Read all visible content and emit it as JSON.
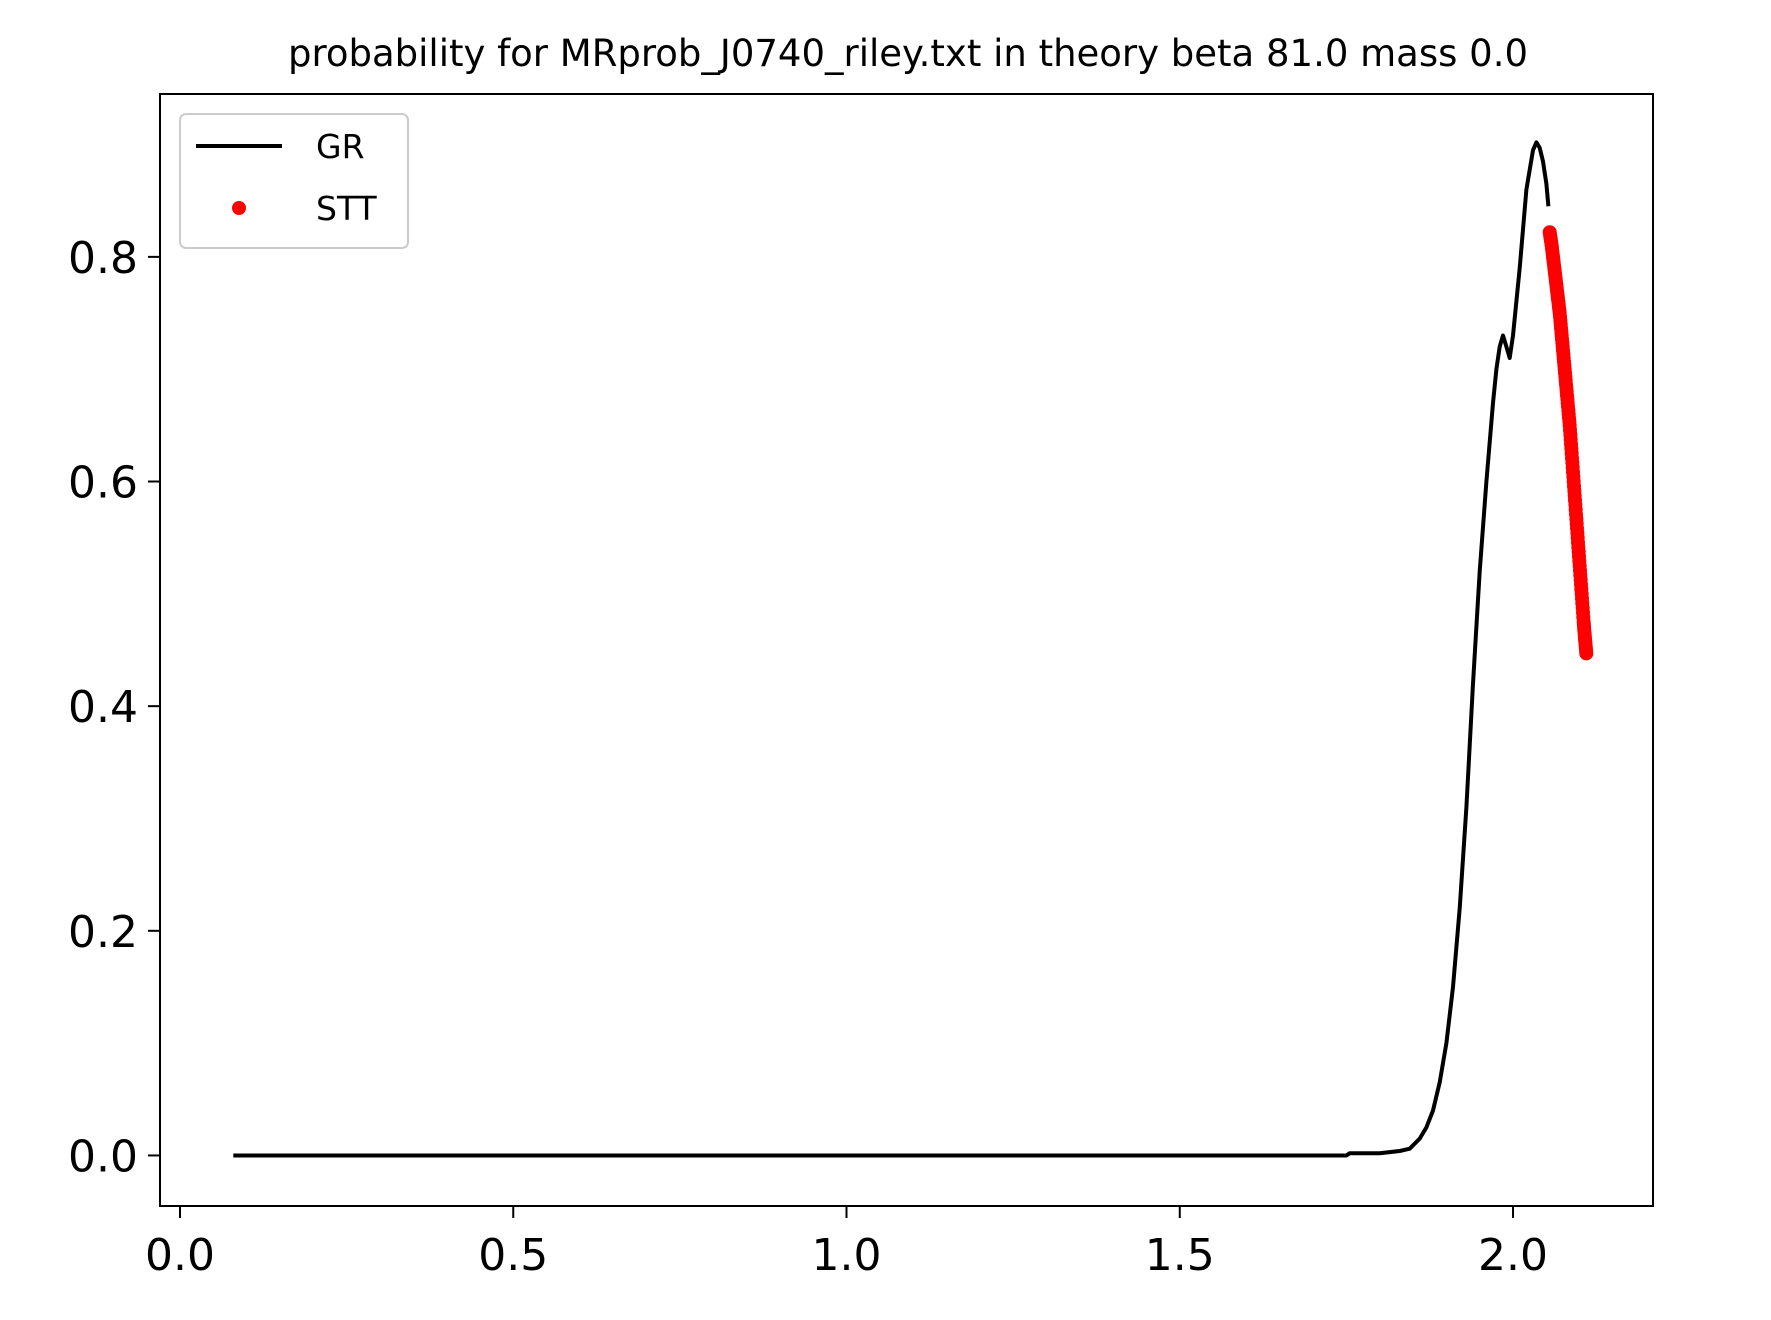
{
  "chart_data": {
    "type": "line",
    "title": "probability for MRprob_J0740_riley.txt in theory beta 81.0 mass 0.0",
    "xlabel": "",
    "ylabel": "",
    "xlim": [
      -0.03,
      2.21
    ],
    "ylim": [
      -0.045,
      0.945
    ],
    "x_ticks": [
      0.0,
      0.5,
      1.0,
      1.5,
      2.0
    ],
    "x_tick_labels": [
      "0.0",
      "0.5",
      "1.0",
      "1.5",
      "2.0"
    ],
    "y_ticks": [
      0.0,
      0.2,
      0.4,
      0.6,
      0.8
    ],
    "y_tick_labels": [
      "0.0",
      "0.2",
      "0.4",
      "0.6",
      "0.8"
    ],
    "grid": false,
    "legend_position": "top-left",
    "series": [
      {
        "name": "GR",
        "style": "line",
        "color": "#000000",
        "points": [
          [
            0.08,
            0.0
          ],
          [
            0.5,
            0.0
          ],
          [
            1.0,
            0.0
          ],
          [
            1.5,
            0.0
          ],
          [
            1.75,
            0.0
          ],
          [
            1.755,
            0.002
          ],
          [
            1.8,
            0.002
          ],
          [
            1.83,
            0.004
          ],
          [
            1.845,
            0.006
          ],
          [
            1.86,
            0.015
          ],
          [
            1.87,
            0.025
          ],
          [
            1.88,
            0.04
          ],
          [
            1.89,
            0.065
          ],
          [
            1.9,
            0.1
          ],
          [
            1.91,
            0.15
          ],
          [
            1.92,
            0.22
          ],
          [
            1.93,
            0.31
          ],
          [
            1.94,
            0.42
          ],
          [
            1.95,
            0.52
          ],
          [
            1.96,
            0.6
          ],
          [
            1.97,
            0.67
          ],
          [
            1.975,
            0.7
          ],
          [
            1.98,
            0.72
          ],
          [
            1.985,
            0.73
          ],
          [
            1.99,
            0.72
          ],
          [
            1.995,
            0.71
          ],
          [
            2.0,
            0.73
          ],
          [
            2.01,
            0.79
          ],
          [
            2.02,
            0.86
          ],
          [
            2.03,
            0.895
          ],
          [
            2.035,
            0.902
          ],
          [
            2.04,
            0.897
          ],
          [
            2.045,
            0.885
          ],
          [
            2.05,
            0.865
          ],
          [
            2.053,
            0.845
          ]
        ]
      },
      {
        "name": "STT",
        "style": "markers",
        "color": "#ff0000",
        "points": [
          [
            2.055,
            0.822
          ],
          [
            2.058,
            0.81
          ],
          [
            2.061,
            0.795
          ],
          [
            2.064,
            0.78
          ],
          [
            2.067,
            0.765
          ],
          [
            2.07,
            0.75
          ],
          [
            2.073,
            0.73
          ],
          [
            2.076,
            0.71
          ],
          [
            2.079,
            0.69
          ],
          [
            2.082,
            0.67
          ],
          [
            2.085,
            0.65
          ],
          [
            2.088,
            0.625
          ],
          [
            2.091,
            0.6
          ],
          [
            2.094,
            0.575
          ],
          [
            2.097,
            0.55
          ],
          [
            2.1,
            0.525
          ],
          [
            2.103,
            0.5
          ],
          [
            2.106,
            0.475
          ],
          [
            2.108,
            0.46
          ],
          [
            2.11,
            0.447
          ]
        ]
      }
    ]
  }
}
